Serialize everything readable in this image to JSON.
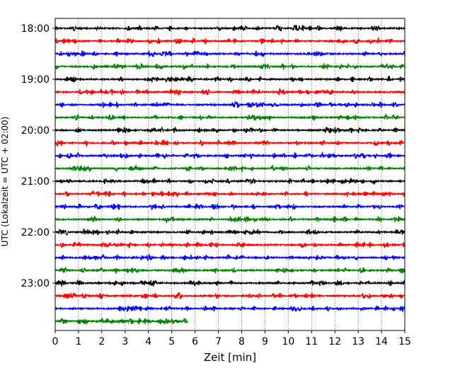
{
  "chart_data": {
    "type": "line",
    "title": "",
    "xlabel": "Zeit  [min]",
    "ylabel": "UTC (Lokalzeit = UTC + 02:00)",
    "xlim": [
      0,
      15
    ],
    "x_ticks": [
      "0",
      "1",
      "2",
      "3",
      "4",
      "5",
      "6",
      "7",
      "8",
      "9",
      "10",
      "11",
      "12",
      "13",
      "14",
      "15"
    ],
    "y_tick_labels": [
      "18:00",
      "19:00",
      "20:00",
      "21:00",
      "22:00",
      "23:00"
    ],
    "grid": "vertical dotted",
    "legend": "none",
    "trace_interval_minutes": 15,
    "trace_colors": [
      "#000000",
      "#ff0000",
      "#0000ff",
      "#008000"
    ],
    "traces": [
      {
        "start": "18:00",
        "end_minute": 15
      },
      {
        "start": "18:15",
        "end_minute": 15
      },
      {
        "start": "18:30",
        "end_minute": 15
      },
      {
        "start": "18:45",
        "end_minute": 15
      },
      {
        "start": "19:00",
        "end_minute": 15
      },
      {
        "start": "19:15",
        "end_minute": 15
      },
      {
        "start": "19:30",
        "end_minute": 15
      },
      {
        "start": "19:45",
        "end_minute": 15
      },
      {
        "start": "20:00",
        "end_minute": 15
      },
      {
        "start": "20:15",
        "end_minute": 15
      },
      {
        "start": "20:30",
        "end_minute": 15
      },
      {
        "start": "20:45",
        "end_minute": 15
      },
      {
        "start": "21:00",
        "end_minute": 15
      },
      {
        "start": "21:15",
        "end_minute": 15
      },
      {
        "start": "21:30",
        "end_minute": 15
      },
      {
        "start": "21:45",
        "end_minute": 15
      },
      {
        "start": "22:00",
        "end_minute": 15
      },
      {
        "start": "22:15",
        "end_minute": 15
      },
      {
        "start": "22:30",
        "end_minute": 15
      },
      {
        "start": "22:45",
        "end_minute": 15
      },
      {
        "start": "23:00",
        "end_minute": 15
      },
      {
        "start": "23:15",
        "end_minute": 15
      },
      {
        "start": "23:30",
        "end_minute": 15
      },
      {
        "start": "23:45",
        "end_minute": 5.7
      }
    ]
  }
}
